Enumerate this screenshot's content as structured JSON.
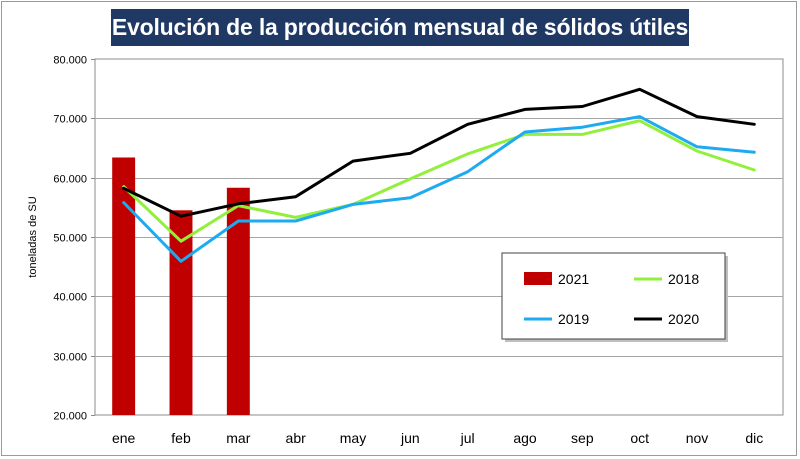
{
  "chart_data": {
    "type": "bar+line",
    "title": "Evolución de la producción mensual de sólidos útiles",
    "ylabel": "toneladas de SU",
    "xlabel": "",
    "ylim": [
      20000,
      80000
    ],
    "yticks": [
      20000,
      30000,
      40000,
      50000,
      60000,
      70000,
      80000
    ],
    "ytick_labels": [
      "20.000",
      "30.000",
      "40.000",
      "50.000",
      "60.000",
      "70.000",
      "80.000"
    ],
    "categories": [
      "ene",
      "feb",
      "mar",
      "abr",
      "may",
      "jun",
      "jul",
      "ago",
      "sep",
      "oct",
      "nov",
      "dic"
    ],
    "grid": "horizontal",
    "legend_position": "right-center",
    "bars": [
      {
        "name": "2021",
        "color": "#c00000",
        "values": [
          63400,
          54500,
          58300
        ]
      }
    ],
    "series": [
      {
        "name": "2018",
        "color": "#92f03c",
        "values": [
          58500,
          49300,
          55300,
          53300,
          55500,
          59800,
          64000,
          67300,
          67300,
          69600,
          64500,
          61300
        ]
      },
      {
        "name": "2019",
        "color": "#1eaaf1",
        "values": [
          55800,
          45900,
          52700,
          52700,
          55500,
          56600,
          61000,
          67700,
          68500,
          70300,
          65200,
          64300
        ]
      },
      {
        "name": "2020",
        "color": "#000000",
        "values": [
          58200,
          53500,
          55600,
          56800,
          62800,
          64100,
          69000,
          71500,
          72000,
          74900,
          70300,
          69000
        ]
      }
    ],
    "legend_order": [
      "2021",
      "2018",
      "2019",
      "2020"
    ]
  }
}
